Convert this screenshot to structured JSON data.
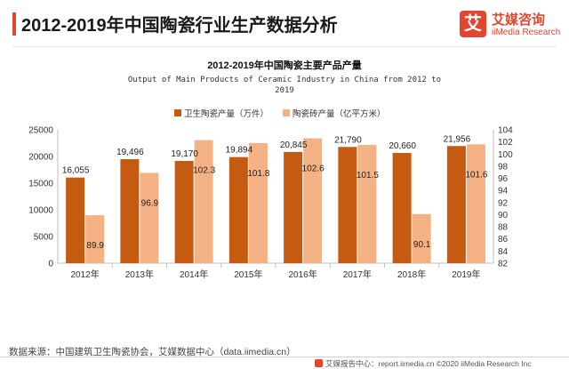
{
  "header": {
    "title": "2012-2019年中国陶瓷行业生产数据分析",
    "logo_mark": "艾",
    "logo_cn": "艾媒咨询",
    "logo_en": "iiMedia Research"
  },
  "colors": {
    "accent": "#e2462f",
    "series1": "#c55a11",
    "series2": "#f4b183"
  },
  "chart_data": {
    "type": "bar",
    "title": "2012-2019年中国陶瓷主要产品产量",
    "subtitle": "Output of Main Products of Ceramic Industry in China from 2012 to 2019",
    "categories": [
      "2012年",
      "2013年",
      "2014年",
      "2015年",
      "2016年",
      "2017年",
      "2018年",
      "2019年"
    ],
    "series": [
      {
        "name": "卫生陶瓷产量（万件）",
        "axis": "left",
        "values": [
          16055,
          19496,
          19170,
          19894,
          20845,
          21790,
          20660,
          21956
        ],
        "labels": [
          "16,055",
          "19,496",
          "19,170",
          "19,894",
          "20,845",
          "21,790",
          "20,660",
          "21,956"
        ]
      },
      {
        "name": "陶瓷砖产量（亿平方米）",
        "axis": "right",
        "values": [
          89.9,
          96.9,
          102.3,
          101.8,
          102.6,
          101.5,
          90.1,
          101.6
        ],
        "labels": [
          "89.9",
          "96.9",
          "102.3",
          "101.8",
          "102.6",
          "101.5",
          "90.1",
          "101.6"
        ]
      }
    ],
    "ylim_left": [
      0,
      25000
    ],
    "yticks_left": [
      "0",
      "5000",
      "10000",
      "15000",
      "20000",
      "25000"
    ],
    "ylim_right": [
      82,
      104
    ],
    "yticks_right": [
      "82",
      "84",
      "86",
      "88",
      "90",
      "92",
      "94",
      "96",
      "98",
      "100",
      "102",
      "104"
    ],
    "legend": "top",
    "grid": false
  },
  "footer": {
    "source": "数据来源：中国建筑卫生陶瓷协会，艾媒数据中心（data.iimedia.cn）",
    "copyright": "艾媒报告中心：report.iimedia.cn  ©2020  iiMedia Research Inc"
  }
}
